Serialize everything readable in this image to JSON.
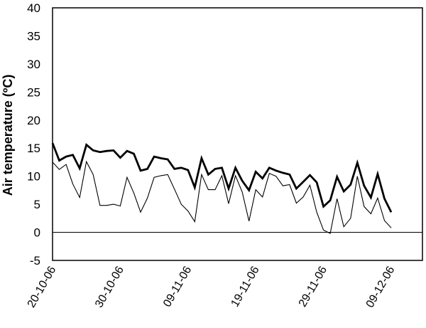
{
  "chart_data": {
    "type": "line",
    "title": "",
    "xlabel": "",
    "ylabel": "Air temperature (ºC)",
    "x_start": "20-10-06",
    "x_tick_labels": [
      "20-10-06",
      "30-10-06",
      "09-11-06",
      "19-11-06",
      "29-11-06",
      "09-12-06"
    ],
    "ylim": [
      -5,
      40
    ],
    "y_ticks": [
      -5,
      0,
      5,
      10,
      15,
      20,
      25,
      30,
      35,
      40
    ],
    "grid": false,
    "legend": "none",
    "reference_line": 0,
    "series": [
      {
        "color": "#000000",
        "weight": "thick",
        "values": [
          15.9,
          12.8,
          13.5,
          13.8,
          11.4,
          15.6,
          14.6,
          14.3,
          14.5,
          14.6,
          13.3,
          14.5,
          14.0,
          11.0,
          11.3,
          13.5,
          13.2,
          13.0,
          11.3,
          11.5,
          11.1,
          8.0,
          13.2,
          10.3,
          11.3,
          11.5,
          7.8,
          11.5,
          9.2,
          7.5,
          10.8,
          9.6,
          11.5,
          11.0,
          10.6,
          10.3,
          7.8,
          9.0,
          10.2,
          8.9,
          4.6,
          5.7,
          9.9,
          7.3,
          8.5,
          12.4,
          8.3,
          6.2,
          10.4,
          6.0,
          3.6
        ]
      },
      {
        "color": "#000000",
        "weight": "thin",
        "values": [
          12.5,
          11.2,
          12.1,
          8.6,
          6.2,
          12.6,
          10.3,
          4.8,
          4.8,
          5.0,
          4.7,
          9.8,
          7.0,
          3.6,
          6.1,
          9.8,
          10.1,
          10.3,
          7.7,
          5.0,
          3.8,
          1.9,
          10.3,
          7.6,
          7.6,
          10.1,
          5.1,
          10.1,
          7.2,
          2.0,
          7.6,
          6.3,
          10.5,
          10.0,
          8.3,
          8.5,
          5.2,
          6.3,
          8.4,
          3.6,
          0.4,
          -0.2,
          6.0,
          1.0,
          2.5,
          10.0,
          4.6,
          3.3,
          6.1,
          2.1,
          0.8
        ]
      }
    ]
  }
}
